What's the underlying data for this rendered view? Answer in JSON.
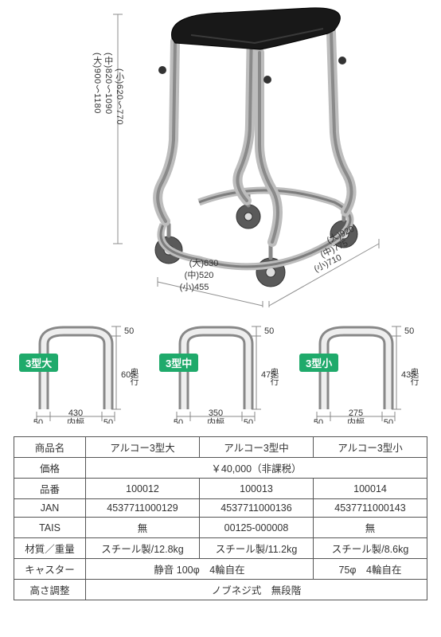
{
  "hero": {
    "height_dims": {
      "large": "(大)900～1180",
      "medium": "(中)820～1090",
      "small": "(小)620～770"
    },
    "width_dims": {
      "large": "(大)630",
      "medium": "(中)520",
      "small": "(小)455"
    },
    "depth_dims": {
      "large": "(大)920",
      "medium": "(中)775",
      "small": "(小)710"
    },
    "colors": {
      "frame": "#f0f0f0",
      "frame_stroke": "#9a9a9a",
      "foam": "#181818",
      "wheel": "#5a5a5a",
      "dim_line": "#8e8e8e"
    }
  },
  "variants": [
    {
      "badge": "3型大",
      "depth": "605",
      "depth_label": "奥行",
      "top_gap": "50",
      "inner_width": "430",
      "side_w": "50",
      "inner_label": "内幅"
    },
    {
      "badge": "3型中",
      "depth": "475",
      "depth_label": "奥行",
      "top_gap": "50",
      "inner_width": "350",
      "side_w": "50",
      "inner_label": "内幅"
    },
    {
      "badge": "3型小",
      "depth": "435",
      "depth_label": "奥行",
      "top_gap": "50",
      "inner_width": "275",
      "side_w": "50",
      "inner_label": "内幅"
    }
  ],
  "spec": {
    "headers": [
      "商品名",
      "価格",
      "品番",
      "JAN",
      "TAIS",
      "材質／重量",
      "キャスター",
      "高さ調整"
    ],
    "rows": {
      "name": [
        "アルコー3型大",
        "アルコー3型中",
        "アルコー3型小"
      ],
      "price": "￥40,000（非課税）",
      "code": [
        "100012",
        "100013",
        "100014"
      ],
      "jan": [
        "4537711000129",
        "4537711000136",
        "4537711000143"
      ],
      "tais": [
        "無",
        "00125-000008",
        "無"
      ],
      "material": [
        "スチール製/12.8kg",
        "スチール製/11.2kg",
        "スチール製/8.6kg"
      ],
      "caster": [
        {
          "span": 2,
          "text": "静音 100φ　4輪自在"
        },
        {
          "span": 1,
          "text": "75φ　4輪自在"
        }
      ],
      "height": "ノブネジ式　無段階"
    }
  }
}
